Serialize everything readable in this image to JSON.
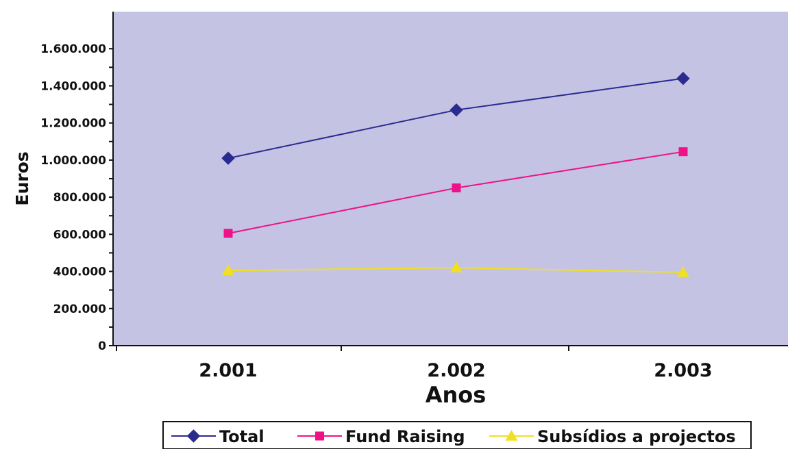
{
  "chart_data": {
    "type": "line",
    "categories": [
      "2.001",
      "2.002",
      "2.003"
    ],
    "series": [
      {
        "name": "Total",
        "values": [
          1010000,
          1270000,
          1440000
        ],
        "color": "#2b2b8f",
        "marker": "diamond"
      },
      {
        "name": "Fund Raising",
        "values": [
          605000,
          850000,
          1045000
        ],
        "color": "#ee1188",
        "marker": "square"
      },
      {
        "name": "Subsídios a projectos",
        "values": [
          405000,
          420000,
          395000
        ],
        "color": "#f0e020",
        "marker": "triangle"
      }
    ],
    "xlabel": "Anos",
    "ylabel": "Euros",
    "ylim": [
      0,
      1800000
    ],
    "yticks": [
      0,
      200000,
      400000,
      600000,
      800000,
      1000000,
      1200000,
      1400000,
      1600000
    ],
    "ytick_labels": [
      "0",
      "200.000",
      "400.000",
      "600.000",
      "800.000",
      "1.000.000",
      "1.200.000",
      "1.400.000",
      "1.600.000"
    ],
    "plot_background": "#c5c3e3",
    "grid": false,
    "legend_position": "bottom"
  }
}
